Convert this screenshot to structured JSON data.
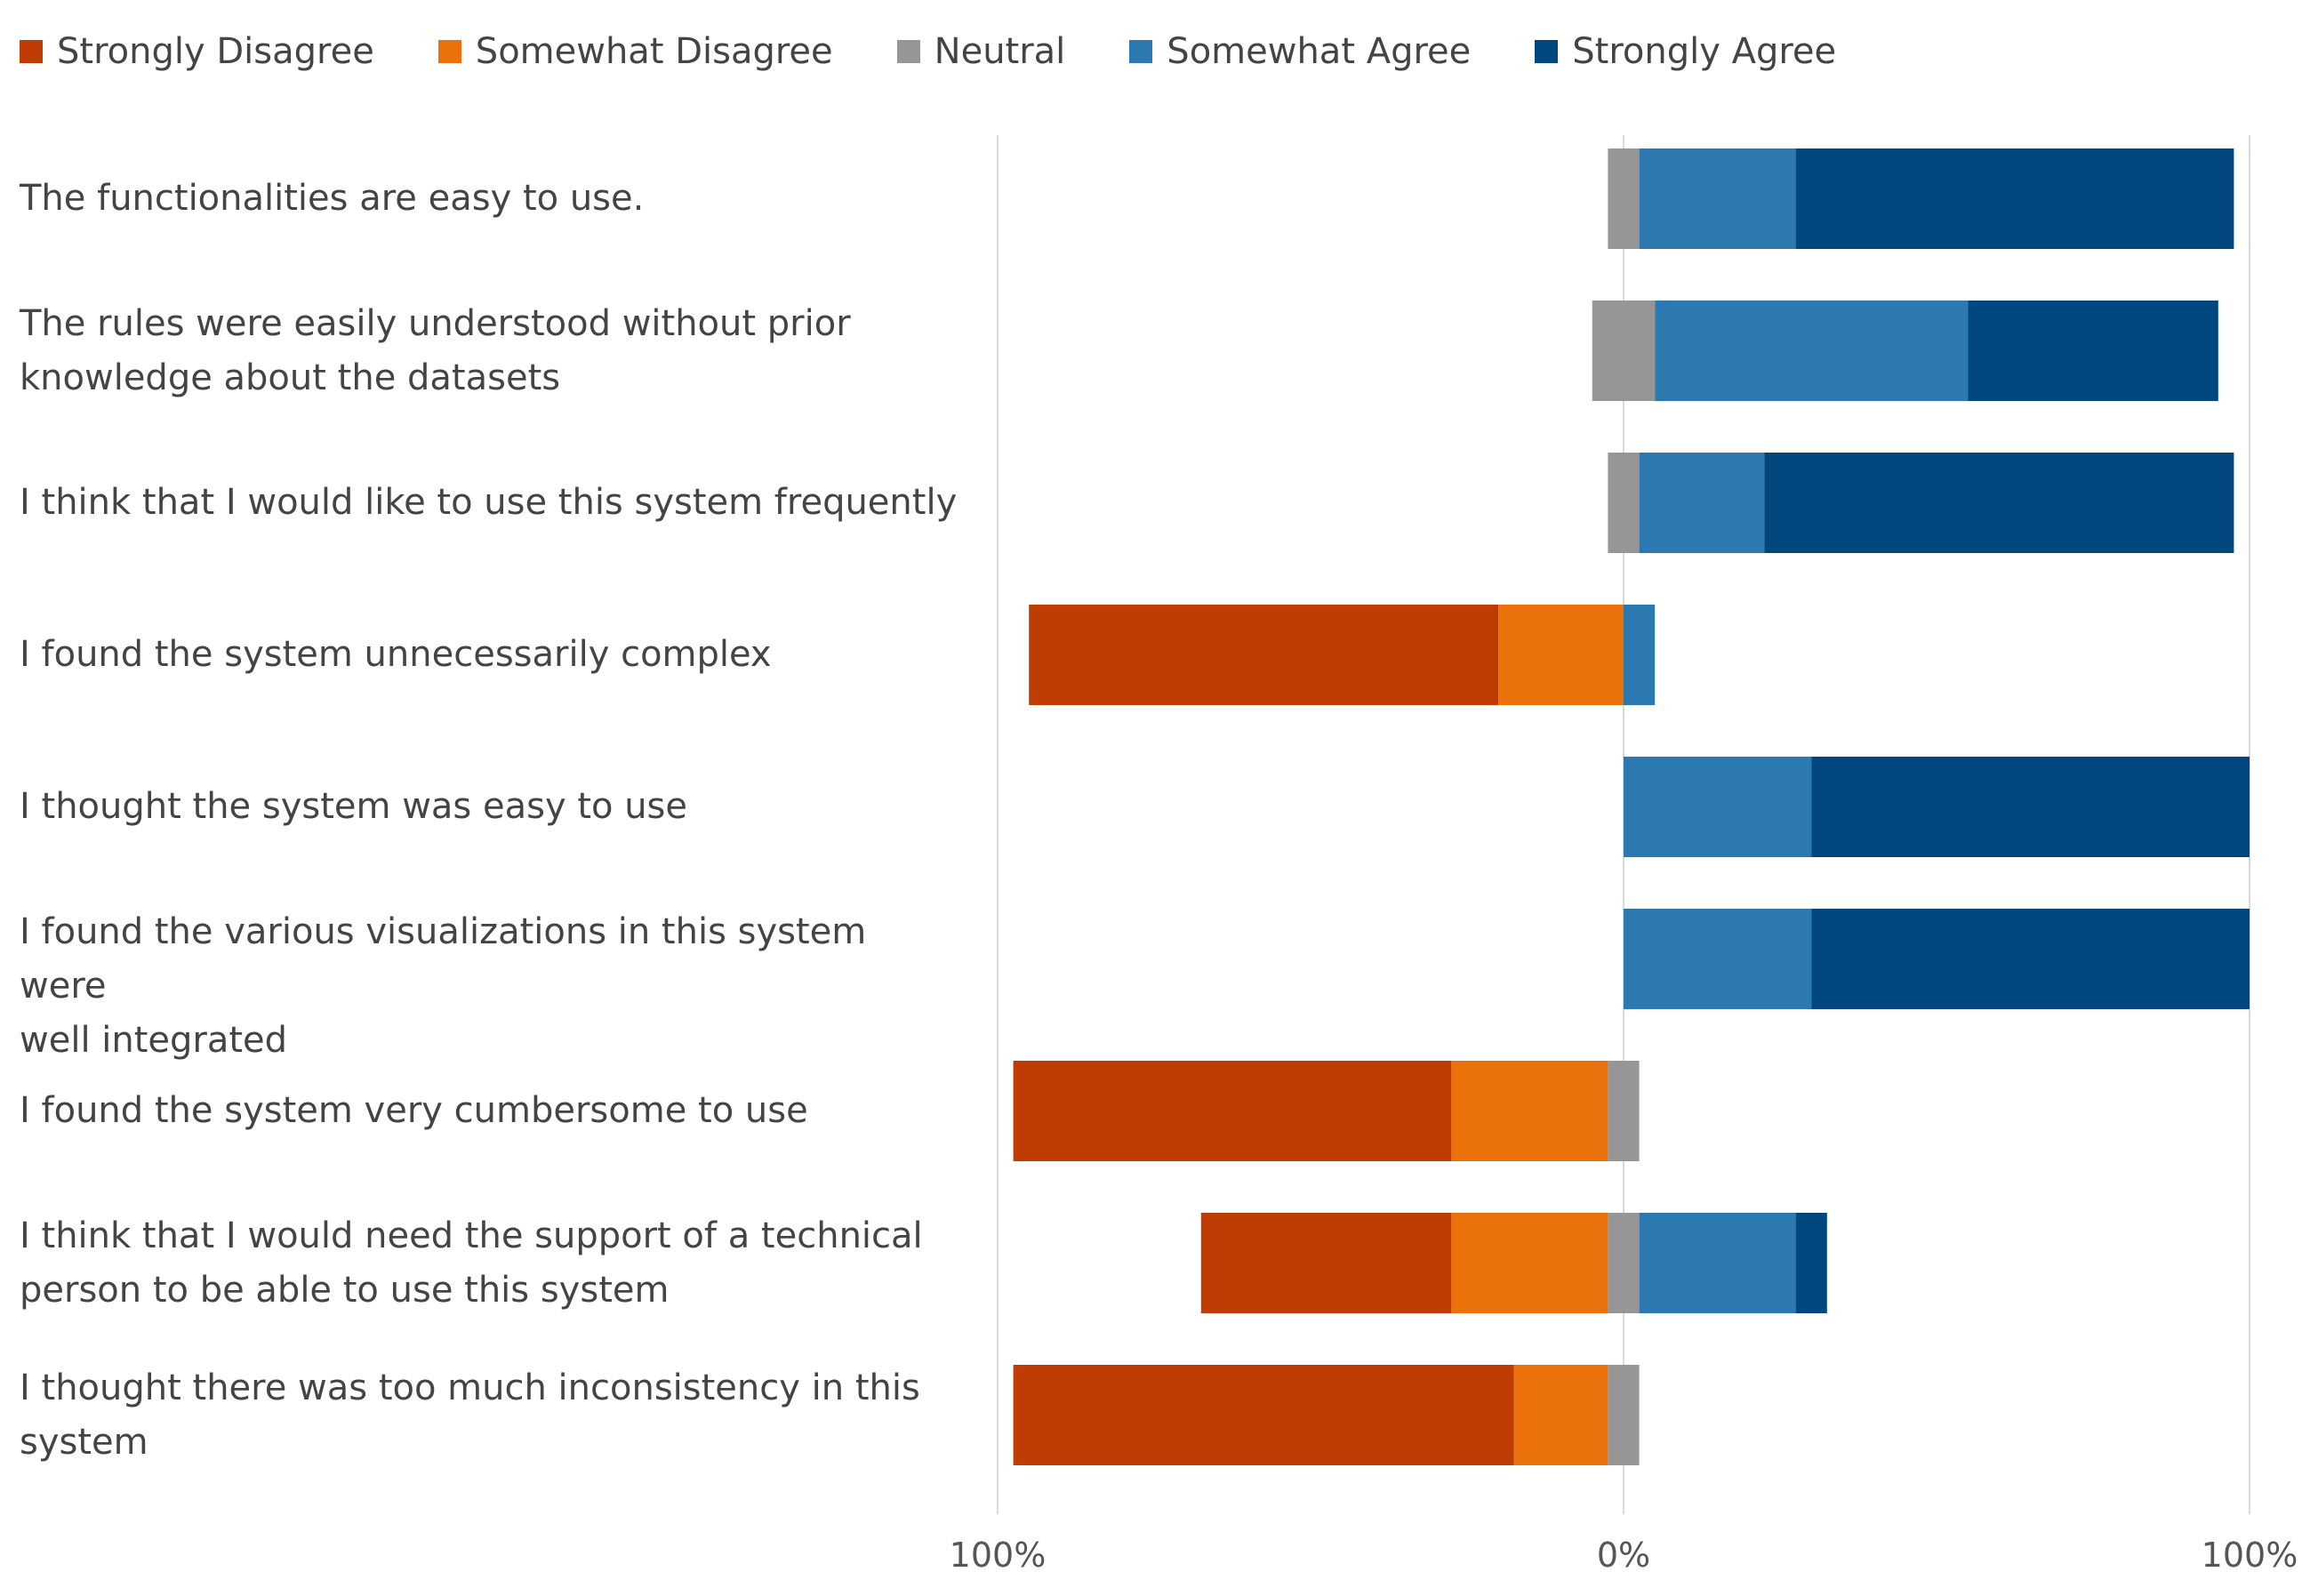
{
  "chart_data": {
    "type": "bar",
    "subtype": "diverging-stacked-100",
    "title": "",
    "xlabel": "",
    "ylabel": "",
    "xlim": [
      -100,
      100
    ],
    "x_tick_labels": [
      "100%",
      "0%",
      "100%"
    ],
    "x_tick_values": [
      -100,
      0,
      100
    ],
    "legend_position": "top",
    "grid": "vertical gridlines at -100, 0, 100",
    "series": [
      {
        "name": "Strongly Disagree",
        "color": "#bf3c04"
      },
      {
        "name": "Somewhat Disagree",
        "color": "#eb720a"
      },
      {
        "name": "Neutral",
        "color": "#969696"
      },
      {
        "name": "Somewhat Agree",
        "color": "#2c79b1"
      },
      {
        "name": "Strongly Agree",
        "color": "#01477f"
      }
    ],
    "categories": [
      {
        "lines": [
          "The functionalities are easy to use."
        ],
        "values": [
          0,
          0,
          5,
          25,
          70
        ]
      },
      {
        "lines": [
          "The rules were easily understood without prior",
          "knowledge about the datasets"
        ],
        "values": [
          0,
          0,
          10,
          50,
          40
        ]
      },
      {
        "lines": [
          "I think that I would like to use this system frequently"
        ],
        "values": [
          0,
          0,
          5,
          20,
          75
        ]
      },
      {
        "lines": [
          "I found the system unnecessarily complex"
        ],
        "values": [
          75,
          20,
          0,
          5,
          0
        ]
      },
      {
        "lines": [
          "I thought the system was easy to use"
        ],
        "values": [
          0,
          0,
          0,
          30,
          70
        ]
      },
      {
        "lines": [
          "I found the various visualizations in this system were",
          "well integrated"
        ],
        "values": [
          0,
          0,
          0,
          30,
          70
        ]
      },
      {
        "lines": [
          "I found the system very cumbersome to use"
        ],
        "values": [
          70,
          25,
          5,
          0,
          0
        ]
      },
      {
        "lines": [
          "I think that I would need the support of a technical",
          "person to be able to use this system"
        ],
        "values": [
          40,
          25,
          5,
          25,
          5
        ]
      },
      {
        "lines": [
          "I thought there was too much inconsistency in this",
          "system"
        ],
        "values": [
          80,
          15,
          5,
          0,
          0
        ]
      }
    ]
  }
}
